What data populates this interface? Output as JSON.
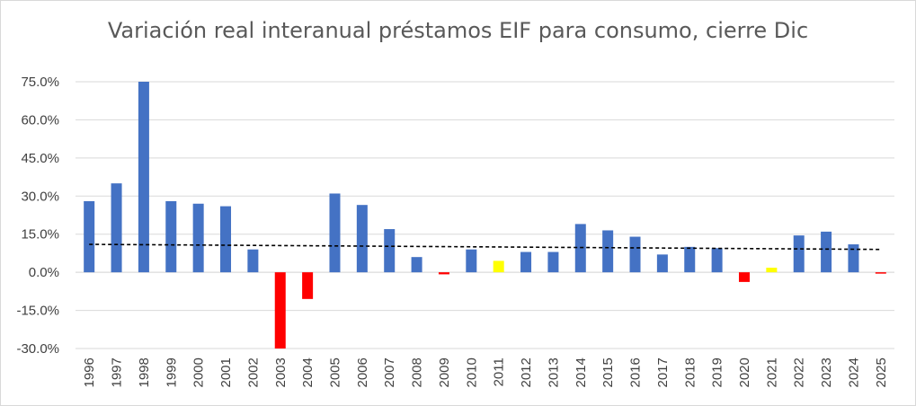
{
  "chart_data": {
    "type": "bar",
    "title": "Variación real interanual préstamos EIF para consumo, cierre Dic",
    "xlabel": "",
    "ylabel": "",
    "ylim": [
      -30,
      75
    ],
    "ytick_values": [
      -30,
      -15,
      0,
      15,
      30,
      45,
      60,
      75
    ],
    "ytick_labels": [
      "-30.0%",
      "-15.0%",
      "0.0%",
      "15.0%",
      "30.0%",
      "45.0%",
      "60.0%",
      "75.0%"
    ],
    "categories": [
      "1996",
      "1997",
      "1998",
      "1999",
      "2000",
      "2001",
      "2002",
      "2003",
      "2004",
      "2005",
      "2006",
      "2007",
      "2008",
      "2009",
      "2010",
      "2011",
      "2012",
      "2013",
      "2014",
      "2015",
      "2016",
      "2017",
      "2018",
      "2019",
      "2020",
      "2021",
      "2022",
      "2023",
      "2024",
      "2025"
    ],
    "values": [
      28.0,
      35.0,
      77.0,
      28.0,
      27.0,
      26.0,
      9.0,
      -30.0,
      -10.5,
      31.0,
      26.5,
      17.0,
      6.0,
      -0.8,
      9.0,
      4.5,
      8.0,
      8.0,
      19.0,
      16.5,
      14.0,
      7.0,
      10.0,
      9.5,
      -3.8,
      1.8,
      14.5,
      16.0,
      11.0,
      -0.4
    ],
    "bar_colors": [
      "#4472C4",
      "#4472C4",
      "#4472C4",
      "#4472C4",
      "#4472C4",
      "#4472C4",
      "#4472C4",
      "#FF0000",
      "#FF0000",
      "#4472C4",
      "#4472C4",
      "#4472C4",
      "#4472C4",
      "#FF0000",
      "#4472C4",
      "#FFFF00",
      "#4472C4",
      "#4472C4",
      "#4472C4",
      "#4472C4",
      "#4472C4",
      "#4472C4",
      "#4472C4",
      "#4472C4",
      "#FF0000",
      "#FFFF00",
      "#4472C4",
      "#4472C4",
      "#4472C4",
      "#FF0000"
    ],
    "trendline": {
      "type": "linear",
      "style": "dashed",
      "color": "#000000",
      "start": 11.0,
      "end": 9.0
    },
    "grid": true,
    "legend": "none"
  }
}
